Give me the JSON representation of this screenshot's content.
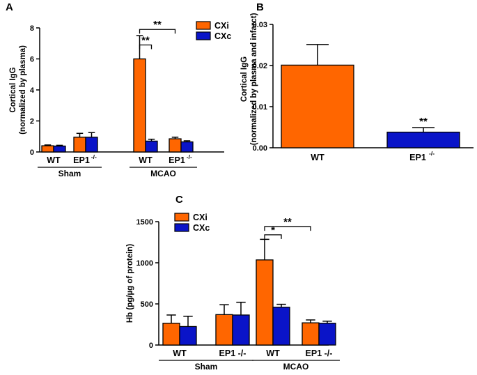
{
  "colors": {
    "cxi": "#ff6600",
    "cxc": "#0a14c8",
    "axis": "#000000"
  },
  "chart_data": [
    {
      "panel": "A",
      "type": "bar",
      "ylabel_lines": [
        "Cortical  IgG",
        "(normalized by plasma)"
      ],
      "ylim": [
        0,
        8
      ],
      "yticks": [
        "0",
        "2",
        "4",
        "6",
        "8"
      ],
      "categories": [
        {
          "label": "WT",
          "sup": ""
        },
        {
          "label": "EP1",
          "sup": "-/-"
        },
        {
          "label": "WT",
          "sup": ""
        },
        {
          "label": "EP1",
          "sup": "-/-"
        }
      ],
      "groups": [
        {
          "label": "Sham",
          "span": [
            0,
            1
          ]
        },
        {
          "label": "MCAO",
          "span": [
            2,
            3
          ]
        }
      ],
      "series": [
        {
          "name": "CXi",
          "values": [
            0.4,
            0.95,
            6.0,
            0.85
          ],
          "errors": [
            0.05,
            0.25,
            1.5,
            0.1
          ]
        },
        {
          "name": "CXc",
          "values": [
            0.38,
            0.95,
            0.7,
            0.65
          ],
          "errors": [
            0.05,
            0.3,
            0.12,
            0.07
          ]
        }
      ],
      "legend": [
        "CXi",
        "CXc"
      ],
      "annotations": [
        {
          "text": "**",
          "from_cat": 2,
          "from_series": 0,
          "to_cat": 2,
          "to_series": 1,
          "level": 6.9
        },
        {
          "text": "**",
          "from_cat": 2,
          "from_series": 0,
          "to_cat": 3,
          "to_series": 0,
          "level": 7.9
        }
      ]
    },
    {
      "panel": "B",
      "type": "bar",
      "ylabel_lines": [
        "Cortical IgG",
        "(normalized by plasma and infarct)"
      ],
      "ylim": [
        0,
        0.03
      ],
      "yticks": [
        "0.00",
        "0.01",
        "0.02",
        "0.03"
      ],
      "categories": [
        {
          "label": "WT",
          "sup": ""
        },
        {
          "label": "EP1",
          "sup": "-/-"
        }
      ],
      "values": [
        0.0201,
        0.0038
      ],
      "errors": [
        0.005,
        0.0011
      ],
      "bar_series": [
        "CXi",
        "CXc"
      ],
      "annotations": [
        {
          "text": "**",
          "cat": 1
        }
      ]
    },
    {
      "panel": "C",
      "type": "bar",
      "ylabel_lines": [
        "Hb (pg/µg of protein)"
      ],
      "ylim": [
        0,
        1500
      ],
      "yticks": [
        "0",
        "500",
        "1000",
        "1500"
      ],
      "categories": [
        {
          "label": "WT",
          "sup": ""
        },
        {
          "label": "EP1 -/-",
          "sup": ""
        },
        {
          "label": "WT",
          "sup": ""
        },
        {
          "label": "EP1 -/-",
          "sup": ""
        }
      ],
      "groups": [
        {
          "label": "Sham",
          "span": [
            0,
            1
          ]
        },
        {
          "label": "MCAO",
          "span": [
            2,
            3
          ]
        }
      ],
      "series": [
        {
          "name": "CXi",
          "values": [
            265,
            370,
            1035,
            270
          ],
          "errors": [
            100,
            120,
            250,
            35
          ]
        },
        {
          "name": "CXc",
          "values": [
            225,
            365,
            460,
            265
          ],
          "errors": [
            125,
            155,
            35,
            25
          ]
        }
      ],
      "legend": [
        "CXi",
        "CXc"
      ],
      "annotations": [
        {
          "text": "*",
          "from_cat": 2,
          "from_series": 0,
          "to_cat": 2,
          "to_series": 1,
          "level": 1340
        },
        {
          "text": "**",
          "from_cat": 2,
          "from_series": 0,
          "to_cat": 3,
          "to_series": 0,
          "level": 1440
        }
      ]
    }
  ]
}
